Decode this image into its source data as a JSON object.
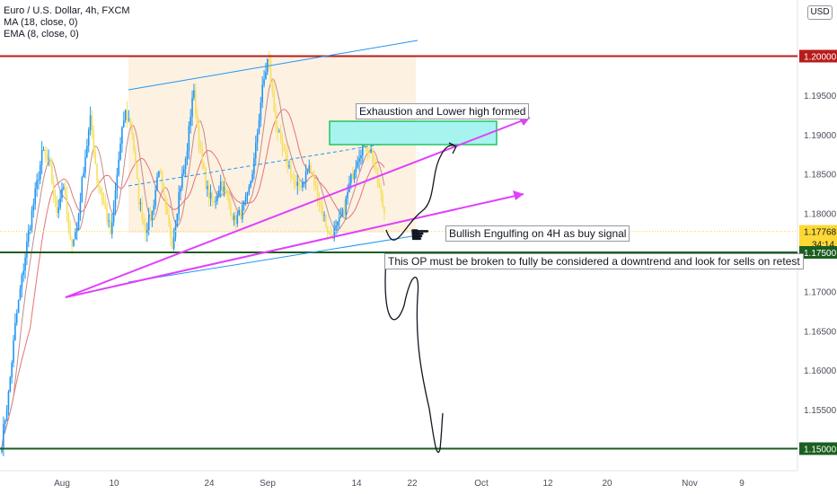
{
  "legend": {
    "title": "Euro / U.S. Dollar, 4h, FXCM",
    "ma": "MA (18, close, 0)",
    "ema": "EMA (8, close, 0)"
  },
  "currency_label": "USD",
  "annotations": {
    "exhaustion": "Exhaustion and Lower high formed",
    "bullish": "Bullish Engulfing on 4H as buy signal",
    "breakdown": "This OP must be broken to fully be considered a downtrend and look for sells on retest"
  },
  "icons": {
    "pointer": "pointing-hand-icon"
  },
  "colors": {
    "up": "#2196f3",
    "down": "#f6e05e",
    "ma": "#e57373",
    "ema": "#c48b8b",
    "channel": "#2196f3",
    "trendline": "#e040fb",
    "resistance": "#b71c1c",
    "support": "#1b5e20",
    "zone_fill": "#a7f3f0",
    "zone_border": "#22c55e",
    "range_shade": "#fdf1e2",
    "current": "#fdd835"
  },
  "chart_data": {
    "type": "candlestick",
    "symbol": "EURUSD",
    "timeframe": "4h",
    "ylim": [
      1.1485,
      1.2055
    ],
    "y_ticks": [
      "1.19500",
      "1.19000",
      "1.18500",
      "1.18000",
      "1.17000",
      "1.16500",
      "1.16000",
      "1.15500"
    ],
    "x_ticks": [
      "Aug",
      "10",
      "24",
      "Sep",
      "14",
      "22",
      "Oct",
      "12",
      "20",
      "Nov",
      "9"
    ],
    "price_labels": [
      {
        "text": "1.20000",
        "kind": "resistance"
      },
      {
        "text": "1.17768",
        "kind": "current"
      },
      {
        "text": "34:14",
        "kind": "countdown"
      },
      {
        "text": "1.17500",
        "kind": "support"
      },
      {
        "text": "1.15000",
        "kind": "support"
      }
    ],
    "levels": [
      {
        "value": 1.2,
        "kind": "resistance"
      },
      {
        "value": 1.175,
        "kind": "support"
      },
      {
        "value": 1.15,
        "kind": "support"
      }
    ],
    "current_price": 1.17768,
    "countdown": "34:14",
    "candle_count": 230,
    "anchors": [
      1.151,
      1.157,
      1.166,
      1.172,
      1.178,
      1.183,
      1.188,
      1.186,
      1.18,
      1.184,
      1.176,
      1.178,
      1.186,
      1.192,
      1.184,
      1.181,
      1.177,
      1.186,
      1.193,
      1.191,
      1.182,
      1.178,
      1.18,
      1.186,
      1.18,
      1.176,
      1.183,
      1.187,
      1.196,
      1.188,
      1.183,
      1.181,
      1.184,
      1.182,
      1.179,
      1.18,
      1.182,
      1.187,
      1.195,
      1.2,
      1.192,
      1.188,
      1.186,
      1.183,
      1.184,
      1.186,
      1.183,
      1.18,
      1.177,
      1.178,
      1.18,
      1.184,
      1.187,
      1.189,
      1.188,
      1.184,
      1.18
    ]
  }
}
